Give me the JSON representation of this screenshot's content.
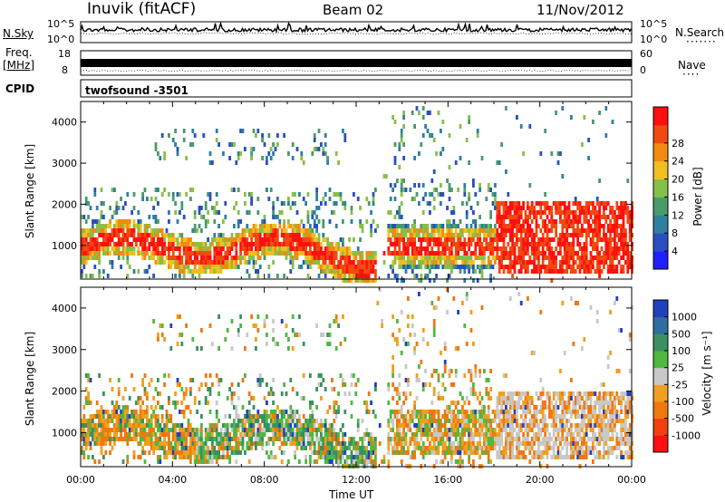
{
  "header": {
    "station": "Inuvik (fitACF)",
    "beam": "Beam 02",
    "date": "11/Nov/2012"
  },
  "panels": {
    "nsky_label": "N.Sky",
    "nsearch_label": "N.Search",
    "noise_ticks": [
      "10^5",
      "10^0"
    ],
    "freq_label": "Freq.",
    "freq_unit": "[MHz]",
    "freq_ticks": [
      "18",
      "8"
    ],
    "nave_label": "Nave",
    "nave_ticks": [
      "60",
      "0"
    ],
    "cpid_label": "CPID",
    "cpid_value": "twofsound -3501"
  },
  "chart_data": [
    {
      "type": "heatmap",
      "name": "power",
      "ylabel": "Slant Range [km]",
      "xlabel": "Time UT",
      "xlim": [
        0,
        24
      ],
      "ylim": [
        180,
        4500
      ],
      "x_ticks": [
        "00:00",
        "04:00",
        "08:00",
        "12:00",
        "16:00",
        "20:00",
        "00:00"
      ],
      "y_ticks": [
        "1000",
        "2000",
        "3000",
        "4000"
      ],
      "colorbar": {
        "label": "Power [dB]",
        "ticks": [
          "4",
          "8",
          "12",
          "16",
          "20",
          "24",
          "28"
        ],
        "colors": [
          "#1f1fff",
          "#2a4fc0",
          "#2f7f9f",
          "#4a9a6a",
          "#86c04a",
          "#f0c020",
          "#f08a10",
          "#f04a10",
          "#ff1010"
        ]
      }
    },
    {
      "type": "heatmap",
      "name": "velocity",
      "ylabel": "Slant Range [km]",
      "xlabel": "Time UT",
      "xlim": [
        0,
        24
      ],
      "ylim": [
        180,
        4500
      ],
      "x_ticks": [
        "00:00",
        "04:00",
        "08:00",
        "12:00",
        "16:00",
        "20:00",
        "00:00"
      ],
      "y_ticks": [
        "1000",
        "2000",
        "3000",
        "4000"
      ],
      "colorbar": {
        "label": "Velocity [m s⁻¹]",
        "ticks": [
          "1000",
          "500",
          "100",
          "25",
          "-25",
          "-100",
          "-500",
          "-1000"
        ],
        "colors": [
          "#2040c0",
          "#2f6fa0",
          "#3a9060",
          "#50b840",
          "#c8c8c8",
          "#f0a020",
          "#f07810",
          "#f04010",
          "#ff1010"
        ]
      }
    }
  ]
}
